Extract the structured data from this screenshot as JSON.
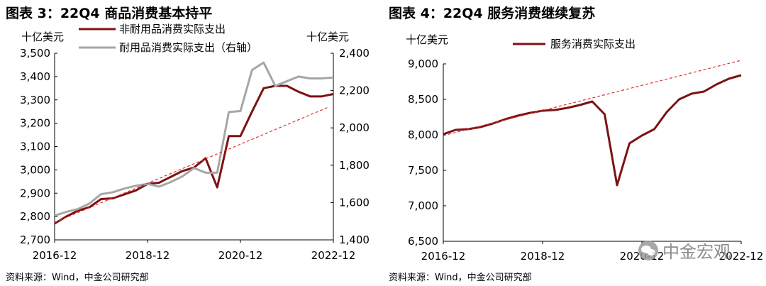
{
  "left": {
    "title": "图表 3：22Q4 商品消费基本持平",
    "source": "资料来源：Wind，中金公司研究部",
    "y_unit_left": "十亿美元",
    "y_unit_right": "十亿美元"
  },
  "right": {
    "title": "图表 4：22Q4 服务消费继续复苏",
    "source": "资料来源：Wind，中金公司研究部",
    "y_unit": "十亿美元"
  },
  "watermark": {
    "text": "中金宏观"
  },
  "colors": {
    "primary": "#7b1214",
    "secondary": "#a6a6a6",
    "trend": "#e03030"
  },
  "chart_data": [
    {
      "type": "line",
      "title": "图表 3：22Q4 商品消费基本持平",
      "x_ticks": [
        "2016-12",
        "2018-12",
        "2020-12",
        "2022-12"
      ],
      "x_tick_index": [
        0,
        8,
        16,
        24
      ],
      "ylim_left": [
        2700,
        3500
      ],
      "y_ticks_left": [
        "2,700",
        "2,800",
        "2,900",
        "3,000",
        "3,100",
        "3,200",
        "3,300",
        "3,400",
        "3,500"
      ],
      "ylim_right": [
        1400,
        2400
      ],
      "y_ticks_right": [
        "1,400",
        "1,600",
        "1,800",
        "2,000",
        "2,200",
        "2,400"
      ],
      "legend_position": "top",
      "series": [
        {
          "name": "非耐用品消费实际支出",
          "axis": "left",
          "color": "#7b1214",
          "values": [
            2770,
            2800,
            2825,
            2840,
            2875,
            2878,
            2895,
            2912,
            2940,
            2945,
            2970,
            2995,
            3010,
            3050,
            2925,
            3145,
            3145,
            3250,
            3350,
            3360,
            3360,
            3335,
            3315,
            3315,
            3325
          ]
        },
        {
          "name": "耐用品消费实际支出（右轴）",
          "axis": "right",
          "color": "#a6a6a6",
          "values": [
            1530,
            1550,
            1565,
            1595,
            1645,
            1655,
            1675,
            1690,
            1700,
            1685,
            1710,
            1740,
            1785,
            1760,
            1760,
            2085,
            2090,
            2310,
            2350,
            2225,
            2250,
            2275,
            2265,
            2265,
            2270
          ]
        },
        {
          "name": "",
          "axis": "left",
          "style": "dashed",
          "color": "#e03030",
          "values": [
            2775,
            3270
          ]
        }
      ]
    },
    {
      "type": "line",
      "title": "图表 4：22Q4 服务消费继续复苏",
      "x_ticks": [
        "2016-12",
        "2018-12",
        "2020-12",
        "2022-12"
      ],
      "x_tick_index": [
        0,
        8,
        16,
        24
      ],
      "ylim": [
        6500,
        9000
      ],
      "y_ticks": [
        "6,500",
        "7,000",
        "7,500",
        "8,000",
        "8,500",
        "9,000"
      ],
      "legend_position": "top",
      "series": [
        {
          "name": "服务消费实际支出",
          "color": "#7b1214",
          "values": [
            8010,
            8070,
            8080,
            8110,
            8160,
            8220,
            8270,
            8310,
            8340,
            8350,
            8380,
            8420,
            8470,
            8290,
            7290,
            7880,
            7990,
            8080,
            8320,
            8500,
            8580,
            8610,
            8710,
            8790,
            8840
          ]
        },
        {
          "name": "",
          "style": "dashed",
          "color": "#e03030",
          "values": [
            7990,
            9050
          ]
        }
      ]
    }
  ]
}
